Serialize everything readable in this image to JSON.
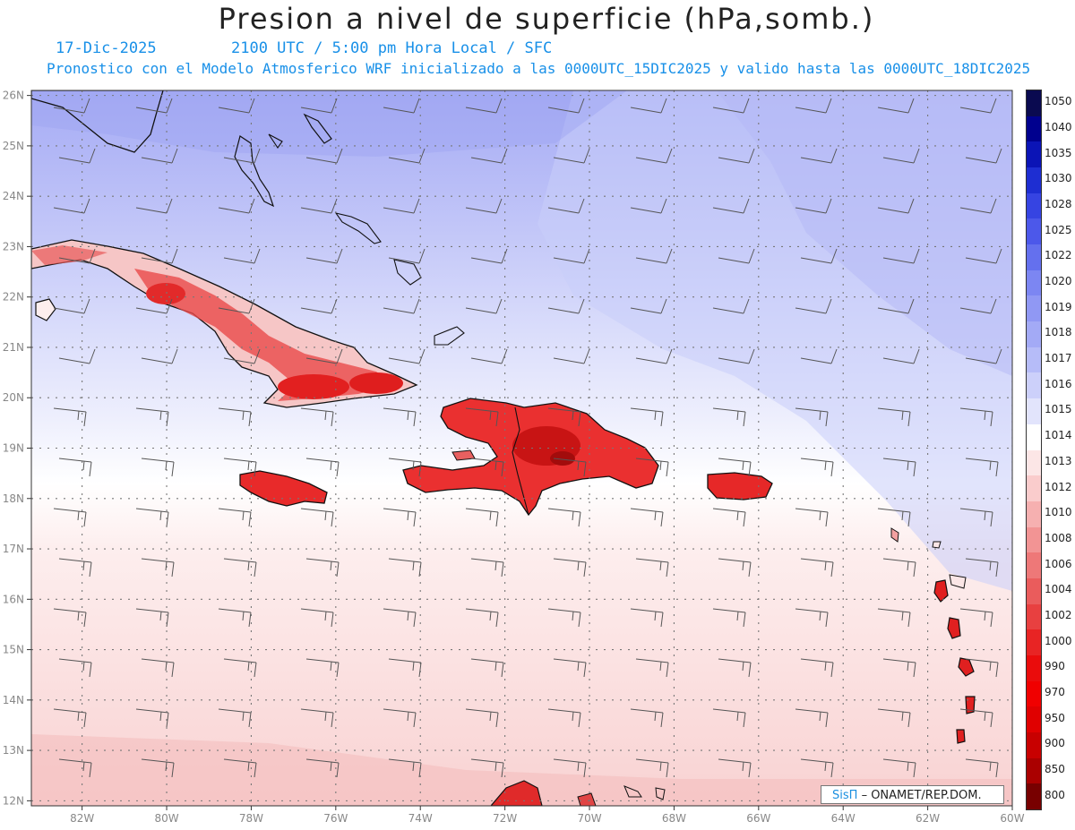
{
  "title": "Presion a nivel de superficie (hPa,somb.)",
  "date": "17-Dic-2025",
  "valid_time": "2100 UTC / 5:00 pm Hora Local / SFC",
  "forecast_note": "Pronostico con el Modelo Atmosferico WRF inicializado a las 0000UTC_15DIC2025 y valido hasta las  0000UTC_18DIC2025",
  "credit": {
    "logo": "SisΠ",
    "text": "– ONAMET/REP.DOM."
  },
  "map": {
    "lon_range": [
      -83.2,
      -60.0
    ],
    "lat_range": [
      11.9,
      26.1
    ],
    "lon_ticks": [
      {
        "v": -82,
        "label": "82W"
      },
      {
        "v": -80,
        "label": "80W"
      },
      {
        "v": -78,
        "label": "78W"
      },
      {
        "v": -76,
        "label": "76W"
      },
      {
        "v": -74,
        "label": "74W"
      },
      {
        "v": -72,
        "label": "72W"
      },
      {
        "v": -70,
        "label": "70W"
      },
      {
        "v": -68,
        "label": "68W"
      },
      {
        "v": -66,
        "label": "66W"
      },
      {
        "v": -64,
        "label": "64W"
      },
      {
        "v": -62,
        "label": "62W"
      },
      {
        "v": -60,
        "label": "60W"
      }
    ],
    "lat_ticks": [
      {
        "v": 12,
        "label": "12N"
      },
      {
        "v": 13,
        "label": "13N"
      },
      {
        "v": 14,
        "label": "14N"
      },
      {
        "v": 15,
        "label": "15N"
      },
      {
        "v": 16,
        "label": "16N"
      },
      {
        "v": 17,
        "label": "17N"
      },
      {
        "v": 18,
        "label": "18N"
      },
      {
        "v": 19,
        "label": "19N"
      },
      {
        "v": 20,
        "label": "20N"
      },
      {
        "v": 21,
        "label": "21N"
      },
      {
        "v": 22,
        "label": "22N"
      },
      {
        "v": 23,
        "label": "23N"
      },
      {
        "v": 24,
        "label": "24N"
      },
      {
        "v": 25,
        "label": "25N"
      },
      {
        "v": 26,
        "label": "26N"
      }
    ]
  },
  "legend": [
    {
      "label": "1050",
      "color": "#0a0a50"
    },
    {
      "label": "1040",
      "color": "#00008e"
    },
    {
      "label": "1035",
      "color": "#0b14b6"
    },
    {
      "label": "1030",
      "color": "#1e2ed2"
    },
    {
      "label": "1028",
      "color": "#3644e2"
    },
    {
      "label": "1025",
      "color": "#4c58ea"
    },
    {
      "label": "1022",
      "color": "#6470ee"
    },
    {
      "label": "1020",
      "color": "#7c86f2"
    },
    {
      "label": "1019",
      "color": "#9098f4"
    },
    {
      "label": "1018",
      "color": "#a3aaf6"
    },
    {
      "label": "1017",
      "color": "#b6bcf8"
    },
    {
      "label": "1016",
      "color": "#ccd0fa"
    },
    {
      "label": "1015",
      "color": "#e2e4fc"
    },
    {
      "label": "1014",
      "color": "#ffffff"
    },
    {
      "label": "1013",
      "color": "#fce6e6"
    },
    {
      "label": "1012",
      "color": "#facccc"
    },
    {
      "label": "1010",
      "color": "#f6b0b0"
    },
    {
      "label": "1008",
      "color": "#f29494"
    },
    {
      "label": "1006",
      "color": "#ee7878"
    },
    {
      "label": "1004",
      "color": "#ea5c5c"
    },
    {
      "label": "1002",
      "color": "#e84040"
    },
    {
      "label": "1000",
      "color": "#e82424"
    },
    {
      "label": "990",
      "color": "#ea0c0c"
    },
    {
      "label": "970",
      "color": "#f00000"
    },
    {
      "label": "950",
      "color": "#e00000"
    },
    {
      "label": "900",
      "color": "#c80000"
    },
    {
      "label": "850",
      "color": "#aa0000"
    },
    {
      "label": "800",
      "color": "#780000"
    }
  ]
}
